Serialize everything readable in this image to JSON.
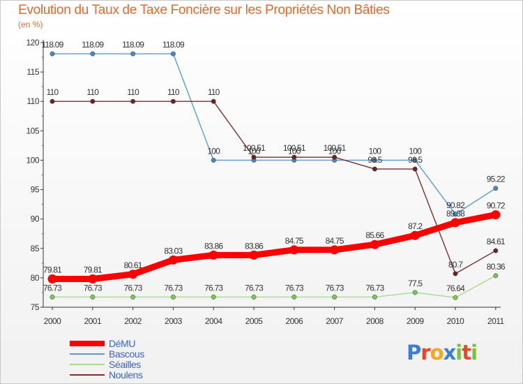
{
  "chart_data": {
    "type": "line",
    "title": "Evolution du Taux de Taxe Foncière sur les Propriétés Non Bâties",
    "subtitle": "(en %)",
    "x": [
      "2000",
      "2001",
      "2002",
      "2003",
      "2004",
      "2005",
      "2006",
      "2007",
      "2008",
      "2009",
      "2010",
      "2011"
    ],
    "ylim": [
      75,
      120
    ],
    "yticks": [
      "75",
      "80",
      "85",
      "90",
      "95",
      "100",
      "105",
      "110",
      "115",
      "120"
    ],
    "grid": false,
    "legend_position": "bottom-left",
    "series": [
      {
        "name": "Bascous",
        "color": "#5b9bd5",
        "dot": "#4a86bf",
        "values": [
          118.09,
          118.09,
          118.09,
          118.09,
          100,
          100,
          100,
          100,
          100,
          100,
          90.82,
          95.22
        ],
        "labels": [
          "118.09",
          "118.09",
          "118.09",
          "118.09",
          "100",
          "100",
          "100",
          "100",
          "100",
          "100",
          "90.82",
          "95.22"
        ]
      },
      {
        "name": "Noulens",
        "color": "#7b2e2e",
        "dot": "#6a2424",
        "values": [
          110,
          110,
          110,
          110,
          110,
          100.51,
          100.51,
          100.51,
          98.5,
          98.5,
          80.7,
          84.61
        ],
        "labels": [
          "110",
          "110",
          "110",
          "110",
          "110",
          "100.51",
          "100.51",
          "100.51",
          "98.5",
          "98.5",
          "80.7",
          "84.61"
        ]
      },
      {
        "name": "Séailles",
        "color": "#a9d98c",
        "dot": "#7cc653",
        "values": [
          76.73,
          76.73,
          76.73,
          76.73,
          76.73,
          76.73,
          76.73,
          76.73,
          76.73,
          77.5,
          76.64,
          80.36
        ],
        "labels": [
          "76.73",
          "76.73",
          "76.73",
          "76.73",
          "76.73",
          "76.73",
          "76.73",
          "76.73",
          "76.73",
          "77.5",
          "76.64",
          "80.36"
        ]
      },
      {
        "name": "DéMU",
        "color": "#ff0000",
        "dot": "#ff0000",
        "values": [
          79.81,
          79.81,
          80.61,
          83.03,
          83.86,
          83.86,
          84.75,
          84.75,
          85.66,
          87.2,
          89.38,
          90.72
        ],
        "labels": [
          "79.81",
          "79.81",
          "80.61",
          "83.03",
          "83.86",
          "83.86",
          "84.75",
          "84.75",
          "85.66",
          "87.2",
          "89.38",
          "90.72"
        ]
      }
    ]
  },
  "legend": [
    {
      "name": "DéMU",
      "color": "#ff0000"
    },
    {
      "name": "Bascous",
      "color": "#5b9bd5"
    },
    {
      "name": "Séailles",
      "color": "#a9d98c"
    },
    {
      "name": "Noulens",
      "color": "#7b2e2e"
    }
  ],
  "logo": {
    "text": "Proxiti",
    "colors": [
      "#3b7dd8",
      "#e8462a",
      "#f5a623",
      "#3b7dd8",
      "#7ac143",
      "#e8462a",
      "#7ac143"
    ]
  }
}
